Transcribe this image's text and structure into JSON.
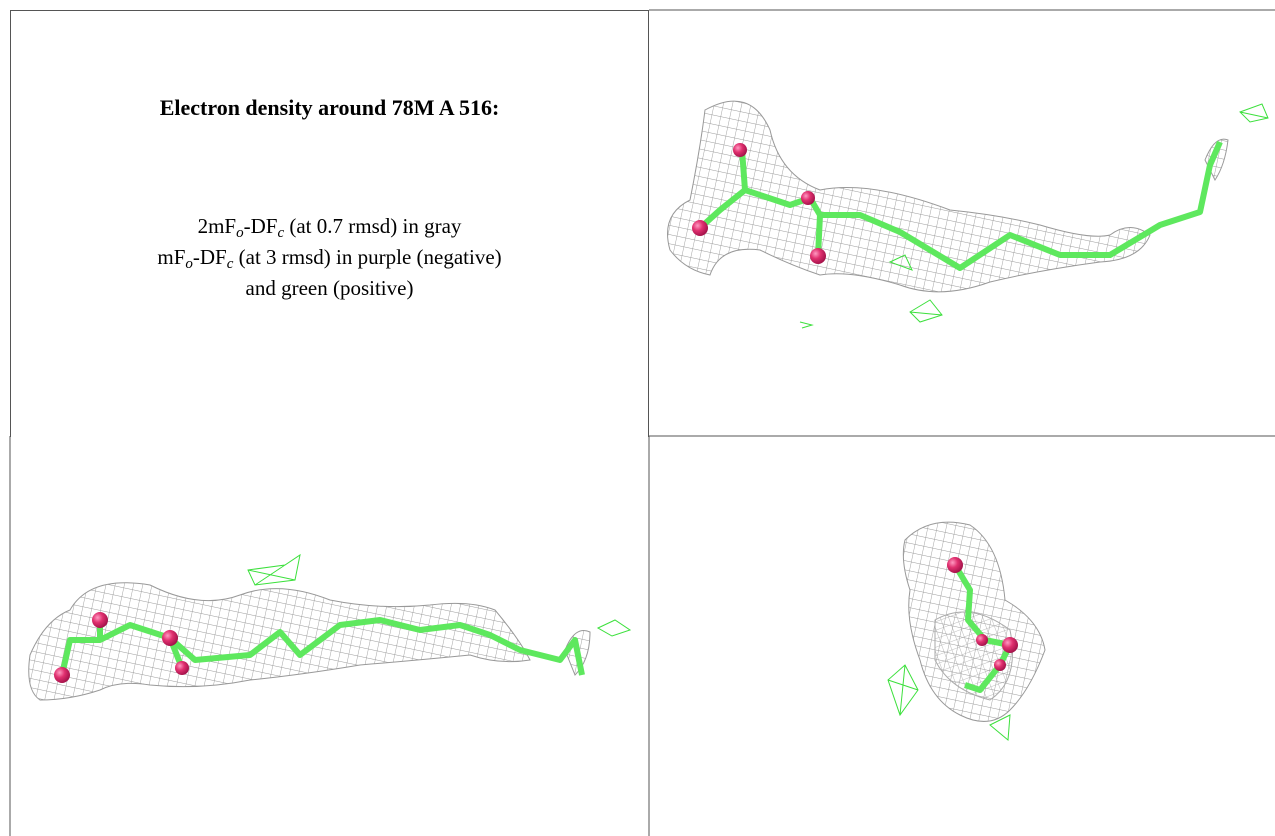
{
  "heading": "Electron density around 78M A 516:",
  "legend": [
    [
      "2mF",
      "o",
      "-DF",
      "c",
      " (at 0.7 rmsd) in gray"
    ],
    [
      "mF",
      "o",
      "-DF",
      "c",
      " (at 3 rmsd) in purple (negative)"
    ],
    [
      "and green (positive)"
    ]
  ]
}
